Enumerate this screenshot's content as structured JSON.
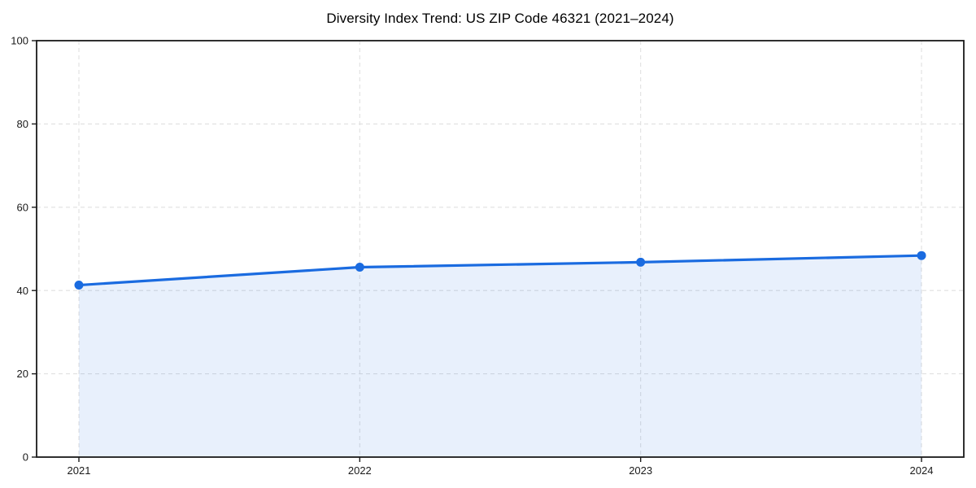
{
  "chart_data": {
    "type": "area",
    "title": "Diversity Index Trend: US ZIP Code 46321 (2021–2024)",
    "categories": [
      "2021",
      "2022",
      "2023",
      "2024"
    ],
    "series": [
      {
        "name": "Diversity Index",
        "values": [
          41.3,
          45.6,
          46.8,
          48.4
        ]
      }
    ],
    "xlabel": "",
    "ylabel": "",
    "ylim": [
      0,
      100
    ],
    "yticks": [
      0,
      20,
      40,
      60,
      80,
      100
    ],
    "grid": true,
    "grid_style": "dashed",
    "legend_position": "none",
    "colors": {
      "line": "#1a6be0",
      "marker": "#1a6be0",
      "fill": "#1a6be0",
      "fill_opacity": 0.1,
      "grid": "#e0e0e0",
      "axis": "#1a1a1a",
      "text": "#1a1a1a",
      "background": "#ffffff"
    }
  }
}
